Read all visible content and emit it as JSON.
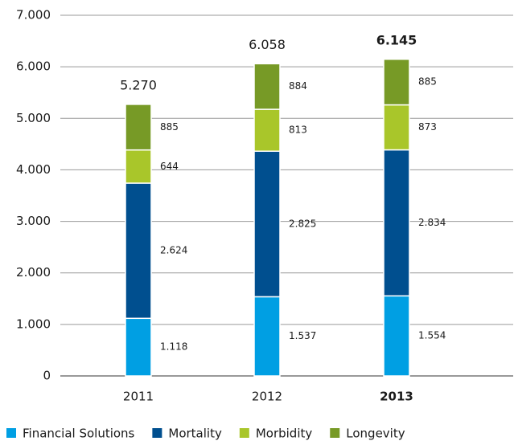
{
  "chart_data": {
    "type": "stacked_bar",
    "categories": [
      "2011",
      "2012",
      "2013"
    ],
    "highlight": 2,
    "series": [
      {
        "name": "Financial Solutions",
        "color": "#009fe3",
        "values": [
          1118,
          1537,
          1554
        ],
        "value_labels": [
          "1.118",
          "1.537",
          "1.554"
        ]
      },
      {
        "name": "Mortality",
        "color": "#004f8f",
        "values": [
          2624,
          2825,
          2834
        ],
        "value_labels": [
          "2.624",
          "2.825",
          "2.834"
        ]
      },
      {
        "name": "Morbidity",
        "color": "#a9c62a",
        "values": [
          644,
          813,
          873
        ],
        "value_labels": [
          "644",
          "813",
          "873"
        ]
      },
      {
        "name": "Longevity",
        "color": "#779a26",
        "values": [
          885,
          884,
          885
        ],
        "value_labels": [
          "885",
          "884",
          "885"
        ]
      }
    ],
    "totals": {
      "values": [
        5270,
        6058,
        6145
      ],
      "value_labels": [
        "5.270",
        "6.058",
        "6.145"
      ]
    },
    "ylim": [
      0,
      7000
    ],
    "yticks": [
      0,
      {
        "value": 1000,
        "label": "1.000"
      },
      {
        "value": 2000,
        "label": "2.000"
      },
      {
        "value": 3000,
        "label": "3.000"
      },
      {
        "value": 4000,
        "label": "4.000"
      },
      {
        "value": 5000,
        "label": "5.000"
      },
      {
        "value": 6000,
        "label": "6.000"
      },
      {
        "value": 7000,
        "label": "7.000"
      }
    ],
    "grid": true
  }
}
